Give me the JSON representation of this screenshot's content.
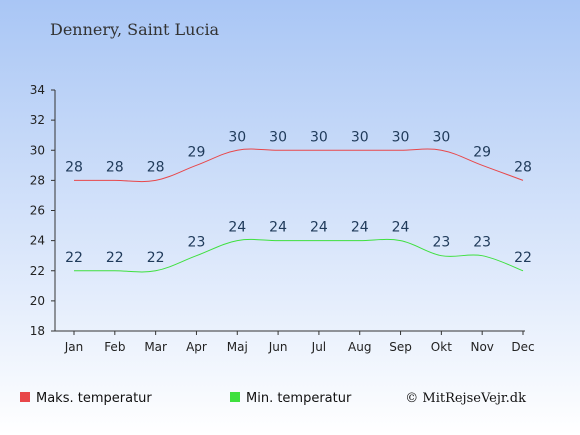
{
  "title": "Dennery, Saint Lucia",
  "credit": "© MitRejseVejr.dk",
  "colors": {
    "max": "#e8474a",
    "min": "#3ee03e",
    "bg_top": "#a9c6f5",
    "bg_bottom": "#ffffff"
  },
  "chart_data": {
    "type": "line",
    "title": "Dennery, Saint Lucia",
    "categories": [
      "Jan",
      "Feb",
      "Mar",
      "Apr",
      "Maj",
      "Jun",
      "Jul",
      "Aug",
      "Sep",
      "Okt",
      "Nov",
      "Dec"
    ],
    "ylim": [
      18,
      34
    ],
    "yticks": [
      18,
      20,
      22,
      24,
      26,
      28,
      30,
      32,
      34
    ],
    "grid": false,
    "legend": "bottom",
    "series": [
      {
        "name": "Maks. temperatur",
        "color": "#e8474a",
        "values": [
          28,
          28,
          28,
          29,
          30,
          30,
          30,
          30,
          30,
          30,
          29,
          28
        ]
      },
      {
        "name": "Min. temperatur",
        "color": "#3ee03e",
        "values": [
          22,
          22,
          22,
          23,
          24,
          24,
          24,
          24,
          24,
          23,
          23,
          22
        ]
      }
    ]
  }
}
